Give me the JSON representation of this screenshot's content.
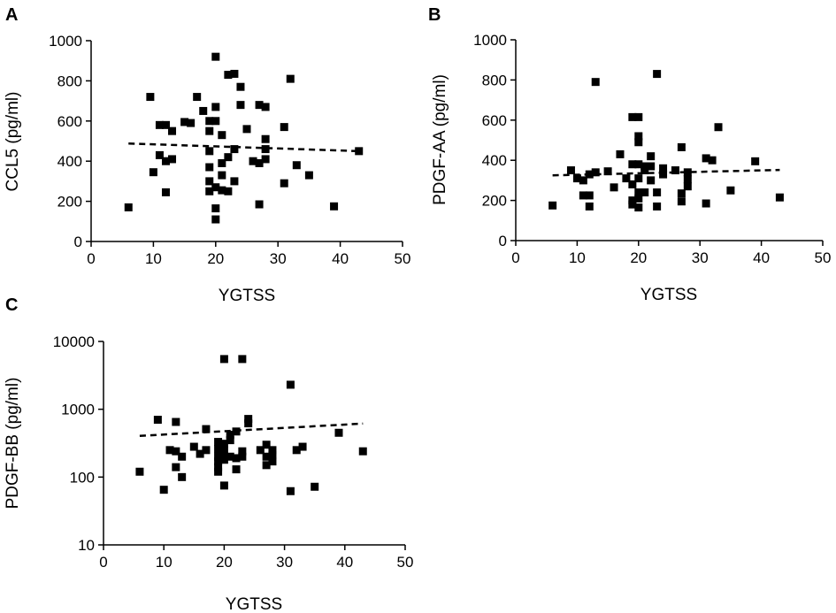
{
  "chart_data": [
    {
      "panel": "A",
      "type": "scatter",
      "title": "",
      "xlabel": "YGTSS",
      "ylabel": "CCL5 (pg/ml)",
      "xlim": [
        0,
        50
      ],
      "ylim": [
        0,
        1000
      ],
      "yscale": "linear",
      "xticks": [
        "0",
        "10",
        "20",
        "30",
        "40",
        "50"
      ],
      "yticks": [
        "0",
        "200",
        "400",
        "600",
        "800",
        "1000"
      ],
      "grid": false,
      "points": [
        [
          6,
          170
        ],
        [
          9.5,
          720
        ],
        [
          10,
          345
        ],
        [
          11,
          580
        ],
        [
          11,
          430
        ],
        [
          12,
          580
        ],
        [
          12,
          400
        ],
        [
          12,
          245
        ],
        [
          13,
          550
        ],
        [
          13,
          410
        ],
        [
          15,
          595
        ],
        [
          16,
          590
        ],
        [
          17,
          720
        ],
        [
          18,
          650
        ],
        [
          19,
          600
        ],
        [
          19,
          550
        ],
        [
          19,
          450
        ],
        [
          19,
          370
        ],
        [
          19,
          300
        ],
        [
          19,
          250
        ],
        [
          20,
          920
        ],
        [
          20,
          670
        ],
        [
          20,
          600
        ],
        [
          20,
          270
        ],
        [
          20,
          165
        ],
        [
          20,
          110
        ],
        [
          21,
          530
        ],
        [
          21,
          390
        ],
        [
          21,
          330
        ],
        [
          21,
          255
        ],
        [
          22,
          830
        ],
        [
          22,
          420
        ],
        [
          22,
          250
        ],
        [
          23,
          835
        ],
        [
          23,
          460
        ],
        [
          23,
          300
        ],
        [
          24,
          770
        ],
        [
          24,
          680
        ],
        [
          25,
          560
        ],
        [
          26,
          400
        ],
        [
          27,
          680
        ],
        [
          27,
          390
        ],
        [
          27,
          185
        ],
        [
          28,
          670
        ],
        [
          28,
          510
        ],
        [
          28,
          460
        ],
        [
          28,
          410
        ],
        [
          31,
          290
        ],
        [
          31,
          570
        ],
        [
          32,
          810
        ],
        [
          33,
          380
        ],
        [
          35,
          330
        ],
        [
          39,
          175
        ],
        [
          43,
          450
        ]
      ],
      "trend": {
        "x": [
          6,
          43
        ],
        "y": [
          488,
          450
        ]
      }
    },
    {
      "panel": "B",
      "type": "scatter",
      "title": "",
      "xlabel": "YGTSS",
      "ylabel": "PDGF-AA (pg/ml)",
      "xlim": [
        0,
        50
      ],
      "ylim": [
        0,
        1000
      ],
      "yscale": "linear",
      "xticks": [
        "0",
        "10",
        "20",
        "30",
        "40",
        "50"
      ],
      "yticks": [
        "0",
        "200",
        "400",
        "600",
        "800",
        "1000"
      ],
      "grid": false,
      "points": [
        [
          6,
          175
        ],
        [
          9,
          350
        ],
        [
          10,
          310
        ],
        [
          11,
          300
        ],
        [
          11,
          225
        ],
        [
          12,
          330
        ],
        [
          12,
          225
        ],
        [
          12,
          170
        ],
        [
          13,
          790
        ],
        [
          13,
          340
        ],
        [
          15,
          345
        ],
        [
          16,
          265
        ],
        [
          17,
          430
        ],
        [
          18,
          310
        ],
        [
          19,
          615
        ],
        [
          19,
          380
        ],
        [
          19,
          280
        ],
        [
          19,
          200
        ],
        [
          19,
          180
        ],
        [
          20,
          615
        ],
        [
          20,
          520
        ],
        [
          20,
          490
        ],
        [
          20,
          380
        ],
        [
          20,
          310
        ],
        [
          20,
          240
        ],
        [
          20,
          210
        ],
        [
          20,
          165
        ],
        [
          21,
          370
        ],
        [
          21,
          350
        ],
        [
          21,
          240
        ],
        [
          22,
          420
        ],
        [
          22,
          370
        ],
        [
          22,
          300
        ],
        [
          23,
          830
        ],
        [
          23,
          240
        ],
        [
          23,
          170
        ],
        [
          24,
          360
        ],
        [
          24,
          330
        ],
        [
          26,
          350
        ],
        [
          27,
          465
        ],
        [
          27,
          235
        ],
        [
          27,
          195
        ],
        [
          28,
          340
        ],
        [
          28,
          305
        ],
        [
          28,
          270
        ],
        [
          31,
          410
        ],
        [
          31,
          185
        ],
        [
          32,
          400
        ],
        [
          33,
          565
        ],
        [
          35,
          250
        ],
        [
          39,
          395
        ],
        [
          43,
          215
        ]
      ],
      "trend": {
        "x": [
          6,
          43
        ],
        "y": [
          325,
          352
        ]
      }
    },
    {
      "panel": "C",
      "type": "scatter",
      "title": "",
      "xlabel": "YGTSS",
      "ylabel": "PDGF-BB (pg/ml)",
      "xlim": [
        0,
        50
      ],
      "ylim": [
        10,
        10000
      ],
      "yscale": "log",
      "xticks": [
        "0",
        "10",
        "20",
        "30",
        "40",
        "50"
      ],
      "yticks": [
        "10",
        "100",
        "1000",
        "10000"
      ],
      "grid": false,
      "points": [
        [
          6,
          120
        ],
        [
          9,
          700
        ],
        [
          10,
          65
        ],
        [
          11,
          250
        ],
        [
          12,
          650
        ],
        [
          12,
          240
        ],
        [
          12,
          140
        ],
        [
          13,
          200
        ],
        [
          13,
          100
        ],
        [
          15,
          280
        ],
        [
          16,
          220
        ],
        [
          17,
          510
        ],
        [
          17,
          250
        ],
        [
          19,
          330
        ],
        [
          19,
          260
        ],
        [
          19,
          200
        ],
        [
          19,
          170
        ],
        [
          19,
          140
        ],
        [
          19,
          120
        ],
        [
          20,
          5500
        ],
        [
          20,
          310
        ],
        [
          20,
          250
        ],
        [
          20,
          200
        ],
        [
          20,
          180
        ],
        [
          20,
          75
        ],
        [
          21,
          420
        ],
        [
          21,
          350
        ],
        [
          21,
          200
        ],
        [
          22,
          470
        ],
        [
          22,
          190
        ],
        [
          22,
          130
        ],
        [
          23,
          5500
        ],
        [
          23,
          240
        ],
        [
          23,
          200
        ],
        [
          24,
          720
        ],
        [
          24,
          620
        ],
        [
          26,
          250
        ],
        [
          27,
          300
        ],
        [
          27,
          200
        ],
        [
          27,
          150
        ],
        [
          28,
          250
        ],
        [
          28,
          210
        ],
        [
          28,
          170
        ],
        [
          31,
          2300
        ],
        [
          31,
          62
        ],
        [
          32,
          250
        ],
        [
          33,
          280
        ],
        [
          35,
          72
        ],
        [
          39,
          450
        ],
        [
          43,
          240
        ]
      ],
      "trend": {
        "x": [
          6,
          43
        ],
        "y": [
          405,
          615
        ]
      }
    }
  ]
}
